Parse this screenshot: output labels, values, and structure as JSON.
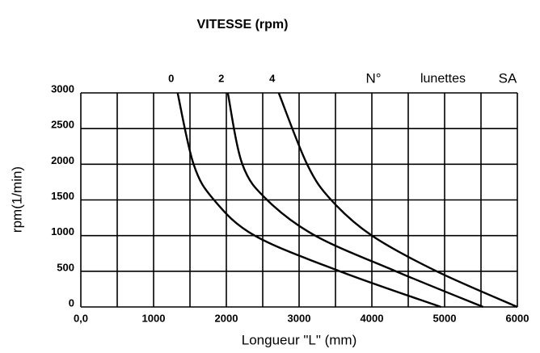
{
  "chart_data": {
    "type": "line",
    "title": "VITESSE (rpm)",
    "ylabel": "rpm(1/min)",
    "xlabel": "Longueur \"L\" (mm)",
    "annotations": [
      "N°",
      "lunettes",
      "SA"
    ],
    "series": [
      {
        "name": "0",
        "color": "#000000",
        "x": [
          1330,
          1550,
          1830,
          2390,
          3560,
          4950
        ],
        "values": [
          3000,
          2000,
          1500,
          1000,
          500,
          0
        ]
      },
      {
        "name": "2",
        "color": "#000000",
        "x": [
          2020,
          2220,
          2560,
          3220,
          4330,
          5530
        ],
        "values": [
          3000,
          2000,
          1500,
          1000,
          500,
          0
        ]
      },
      {
        "name": "4",
        "color": "#000000",
        "x": [
          2720,
          3110,
          3440,
          4000,
          4890,
          6000
        ],
        "values": [
          3000,
          2000,
          1500,
          1000,
          500,
          0
        ]
      }
    ],
    "xlim": [
      0,
      6000
    ],
    "ylim": [
      0,
      3000
    ],
    "xticks": [
      {
        "value": 0,
        "label": "0,0"
      },
      1000,
      2000,
      3000,
      4000,
      5000,
      6000
    ],
    "yticks": [
      0,
      500,
      1000,
      1500,
      2000,
      2500,
      3000
    ],
    "xgrid": [
      0,
      500,
      1000,
      1500,
      2000,
      2500,
      3000,
      3500,
      4000,
      4500,
      5000,
      5500,
      6000
    ],
    "grid": true
  }
}
